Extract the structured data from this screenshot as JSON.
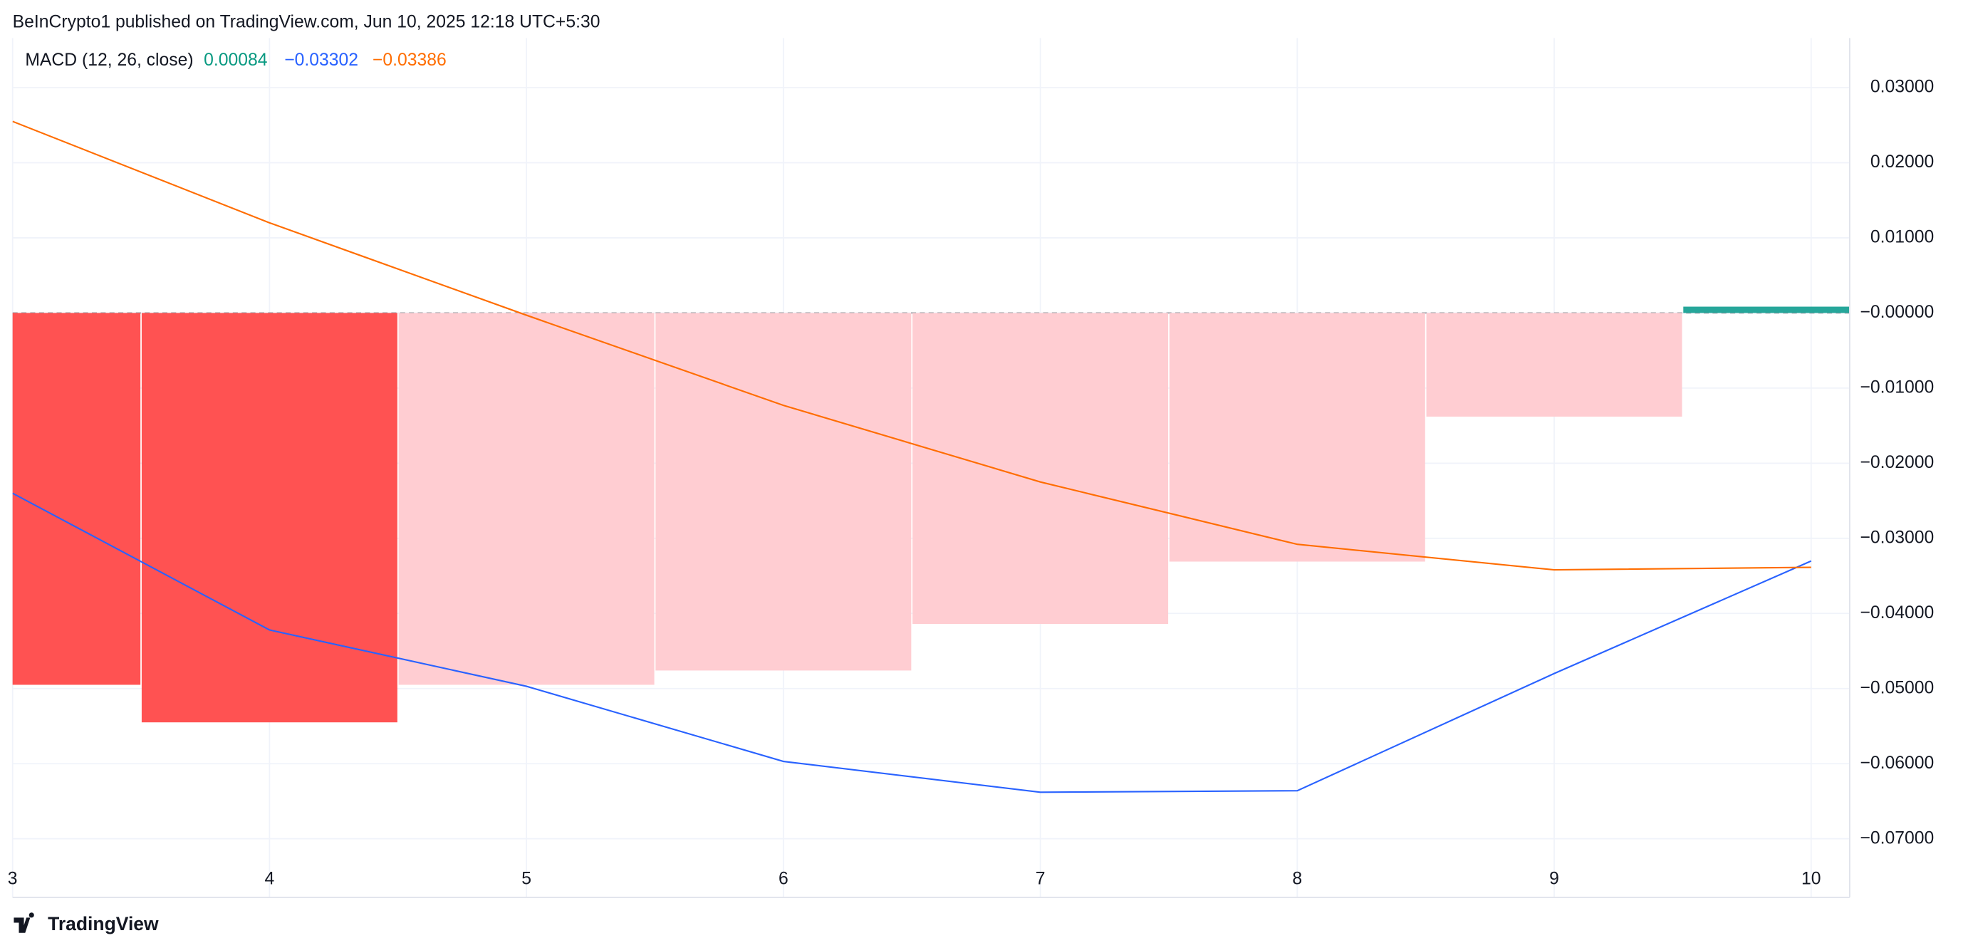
{
  "source": "BeInCrypto1 published on TradingView.com, Jun 10, 2025 12:18 UTC+5:30",
  "brand": "TradingView",
  "chart_data": {
    "type": "macd",
    "title": "MACD (12, 26, close)",
    "x": [
      3,
      4,
      5,
      6,
      7,
      8,
      9,
      10
    ],
    "xlim": [
      3,
      10.15
    ],
    "ylim": [
      -0.0778,
      0.0366
    ],
    "yticks": [
      {
        "value": 0.03,
        "label": "0.03000"
      },
      {
        "value": 0.02,
        "label": "0.02000"
      },
      {
        "value": 0.01,
        "label": "0.01000"
      },
      {
        "value": 0,
        "label": "−0.00000"
      },
      {
        "value": -0.01,
        "label": "−0.01000"
      },
      {
        "value": -0.02,
        "label": "−0.02000"
      },
      {
        "value": -0.03,
        "label": "−0.03000"
      },
      {
        "value": -0.04,
        "label": "−0.04000"
      },
      {
        "value": -0.05,
        "label": "−0.05000"
      },
      {
        "value": -0.06,
        "label": "−0.06000"
      },
      {
        "value": -0.07,
        "label": "−0.07000"
      }
    ],
    "grid": true,
    "series": [
      {
        "type": "bar",
        "color": "#089981",
        "colors": [
          "#ff5252",
          "#ff5252",
          "#ffcdd2",
          "#ffcdd2",
          "#ffcdd2",
          "#ffcdd2",
          "#ffcdd2",
          "#26a69a"
        ],
        "values": [
          -0.0495,
          -0.0545,
          -0.0495,
          -0.0476,
          -0.0414,
          -0.0331,
          -0.0138,
          0.00084
        ],
        "legend_label": "0.00084"
      },
      {
        "type": "line",
        "color": "#2962ff",
        "values": [
          -0.024,
          -0.0422,
          -0.0497,
          -0.0597,
          -0.0638,
          -0.0636,
          -0.048,
          -0.03302
        ],
        "legend_label": "−0.03302"
      },
      {
        "type": "line",
        "color": "#ff6d00",
        "values": [
          0.0255,
          0.012,
          -0.0003,
          -0.0123,
          -0.0225,
          -0.0308,
          -0.0342,
          -0.03386
        ],
        "legend_label": "−0.03386"
      }
    ]
  }
}
